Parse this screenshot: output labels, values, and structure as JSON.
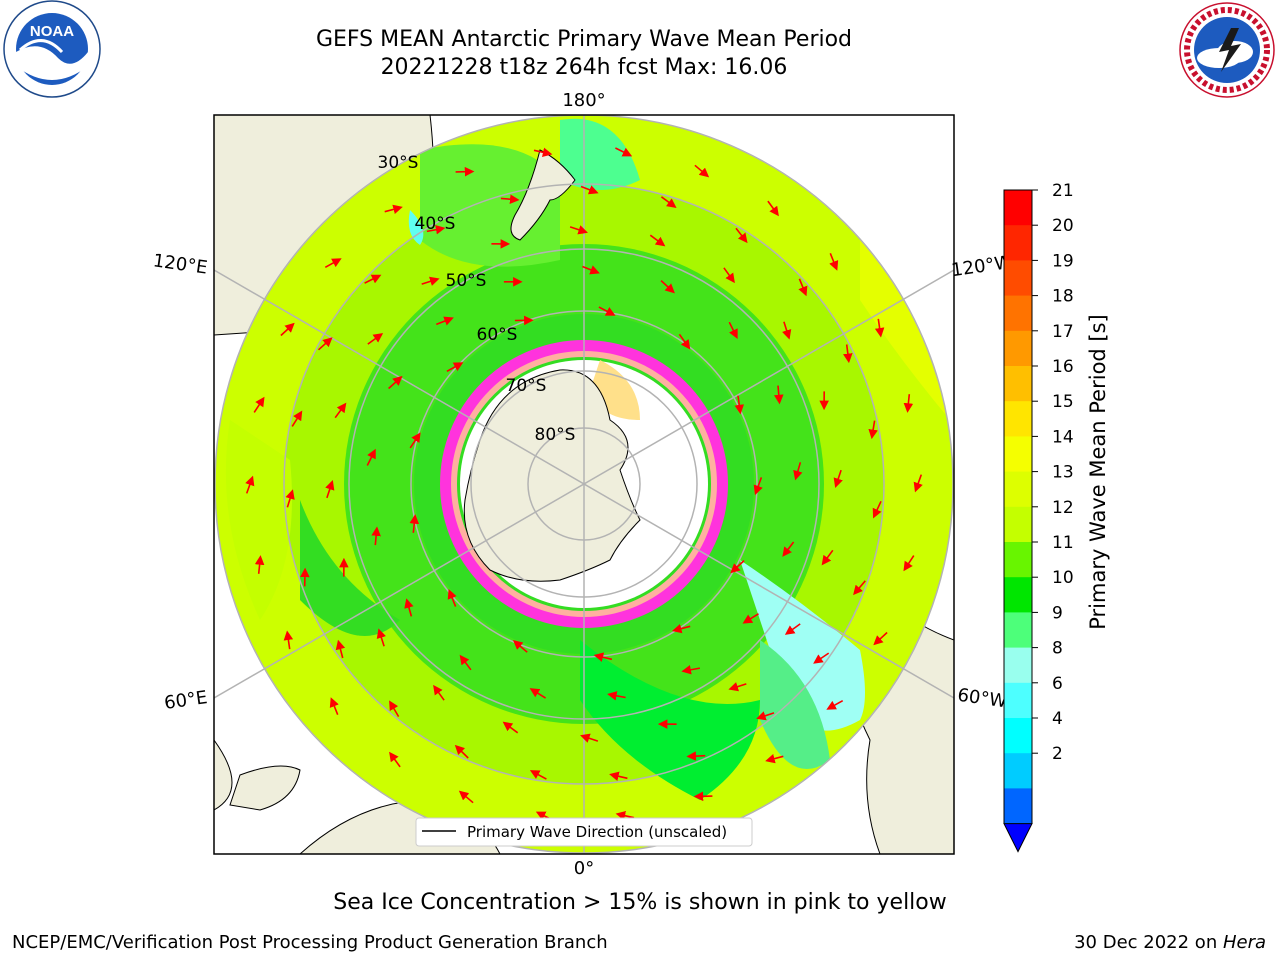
{
  "title": {
    "line1": "GEFS MEAN Antarctic Primary Wave Mean Period",
    "line2": "20221228 t18z 264h fcst   Max: 16.06"
  },
  "logos": {
    "left": {
      "text": "NOAA",
      "ring_text": "NATIONAL OCEANIC AND ATMOSPHERIC ADMINISTRATION · U.S. DEPARTMENT OF COMMERCE"
    },
    "right": {
      "ring_text": "NATIONAL WEATHER SERVICE"
    }
  },
  "map": {
    "lon_labels": {
      "top": "180°",
      "bottom": "0°",
      "upper_left": "120°E",
      "upper_right": "120°W",
      "lower_left": "60°E",
      "lower_right": "60°W"
    },
    "lat_labels": [
      "30°S",
      "40°S",
      "50°S",
      "60°S",
      "70°S",
      "80°S"
    ],
    "legend_label": "Primary Wave Direction (unscaled)"
  },
  "colorbar": {
    "label": "Primary Wave Mean Period [s]",
    "ticks": [
      "21",
      "20",
      "19",
      "18",
      "17",
      "16",
      "15",
      "14",
      "13",
      "12",
      "11",
      "10",
      "9",
      "8",
      "6",
      "4",
      "2"
    ],
    "colors": [
      "#ff0000",
      "#ff2600",
      "#ff4c00",
      "#ff7300",
      "#ff9900",
      "#ffbf00",
      "#ffe500",
      "#f5ff00",
      "#ddff00",
      "#c4ff00",
      "#68f500",
      "#00e600",
      "#4dff7a",
      "#99ffee",
      "#4dffff",
      "#00ffff",
      "#00ccff",
      "#0066ff"
    ],
    "extend_color": "#0000ff"
  },
  "note": "Sea Ice Concentration > 15% is shown in pink to yellow",
  "footer": {
    "left": "NCEP/EMC/Verification Post Processing Product Generation Branch",
    "right_prefix": "30 Dec 2022 on ",
    "right_machine": "Hera"
  }
}
